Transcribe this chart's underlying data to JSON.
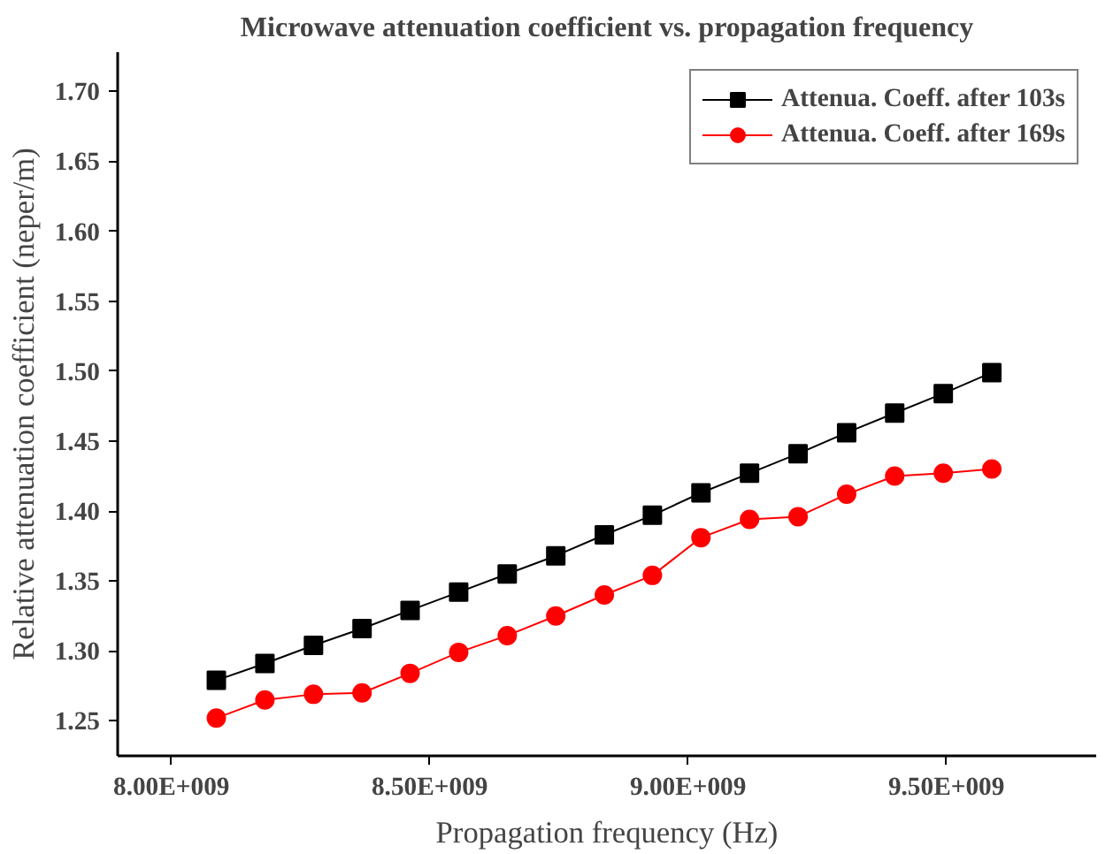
{
  "chart_data": {
    "type": "line",
    "title": "Microwave attenuation coefficient vs. propagation frequency",
    "xlabel": "Propagation frequency (Hz)",
    "ylabel": "Relative attenuation coefficient (neper/m)",
    "x": [
      8087000000.0,
      8181000000.0,
      8275000000.0,
      8369000000.0,
      8462000000.0,
      8556000000.0,
      8650000000.0,
      8744000000.0,
      8838000000.0,
      8931000000.0,
      9025000000.0,
      9119000000.0,
      9213000000.0,
      9307000000.0,
      9400000000.0,
      9494000000.0,
      9588000000.0
    ],
    "series": [
      {
        "name": "Attenua. Coeff. after 103s",
        "color": "#000000",
        "marker": "square",
        "values": [
          1.279,
          1.291,
          1.304,
          1.316,
          1.329,
          1.342,
          1.355,
          1.368,
          1.383,
          1.397,
          1.413,
          1.427,
          1.441,
          1.456,
          1.47,
          1.484,
          1.499
        ]
      },
      {
        "name": "Attenua. Coeff. after 169s",
        "color": "#ff0000",
        "marker": "circle",
        "values": [
          1.252,
          1.265,
          1.269,
          1.27,
          1.284,
          1.299,
          1.311,
          1.325,
          1.34,
          1.354,
          1.381,
          1.394,
          1.396,
          1.412,
          1.425,
          1.427,
          1.43
        ]
      }
    ],
    "xlim": [
      7896000000.0,
      9790000000.0
    ],
    "xticks": [
      {
        "value": 8000000000.0,
        "label": "8.00E+009"
      },
      {
        "value": 8500000000.0,
        "label": "8.50E+009"
      },
      {
        "value": 9000000000.0,
        "label": "9.00E+009"
      },
      {
        "value": 9500000000.0,
        "label": "9.50E+009"
      }
    ],
    "ylim": [
      1.225,
      1.728
    ],
    "yticks": [
      {
        "value": 1.25,
        "label": "1.25"
      },
      {
        "value": 1.3,
        "label": "1.30"
      },
      {
        "value": 1.35,
        "label": "1.35"
      },
      {
        "value": 1.4,
        "label": "1.40"
      },
      {
        "value": 1.45,
        "label": "1.45"
      },
      {
        "value": 1.5,
        "label": "1.50"
      },
      {
        "value": 1.55,
        "label": "1.55"
      },
      {
        "value": 1.6,
        "label": "1.60"
      },
      {
        "value": 1.65,
        "label": "1.65"
      },
      {
        "value": 1.7,
        "label": "1.70"
      }
    ],
    "grid": false,
    "legend": "top right",
    "line_style": "solid"
  }
}
